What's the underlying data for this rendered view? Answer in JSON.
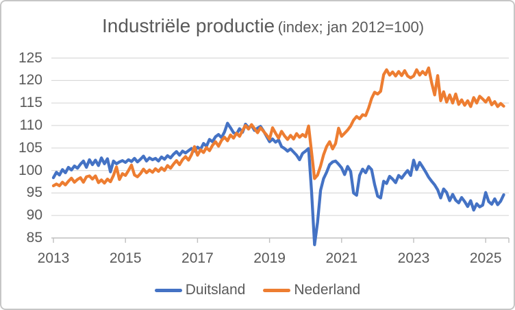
{
  "title": {
    "main": "Industriële productie",
    "sub": "(index; jan 2012=100)"
  },
  "colors": {
    "duitsland_blue": "#4472C4",
    "nederland_orange": "#ED7D31",
    "gridline": "#D9D9D9",
    "axis_line": "#BFBFBF",
    "text": "#595959",
    "frame_border": "#C6C6C6",
    "background": "#FFFFFF"
  },
  "chart_data": {
    "type": "line",
    "title": "Industriële productie (index; jan 2012=100)",
    "xlabel": "",
    "ylabel": "",
    "grid": true,
    "legend_position": "bottom",
    "ylim": [
      85,
      127
    ],
    "y_ticks": [
      85,
      90,
      95,
      100,
      105,
      110,
      115,
      120,
      125
    ],
    "x_tick_years": [
      2013,
      2015,
      2017,
      2019,
      2021,
      2023,
      2025
    ],
    "x_start": "2013-01",
    "x_frequency": "monthly",
    "x_end": "2025-07",
    "series": [
      {
        "name": "Duitsland",
        "color": "#4472C4",
        "values": [
          98.4,
          99.6,
          99.0,
          100.2,
          99.5,
          100.7,
          100.1,
          101.0,
          100.5,
          101.4,
          102.1,
          100.7,
          102.4,
          101.3,
          102.3,
          101.1,
          102.8,
          101.5,
          102.6,
          99.7,
          102.1,
          101.5,
          101.9,
          102.2,
          101.8,
          102.4,
          102.0,
          102.7,
          101.9,
          102.5,
          103.2,
          102.1,
          102.8,
          102.4,
          102.7,
          102.1,
          103.0,
          102.5,
          103.3,
          102.8,
          103.6,
          104.2,
          103.4,
          104.3,
          103.9,
          104.4,
          104.9,
          104.3,
          105.2,
          104.7,
          106.0,
          105.4,
          106.9,
          106.4,
          107.5,
          108.0,
          107.3,
          108.6,
          110.5,
          109.5,
          108.4,
          108.1,
          109.3,
          108.5,
          110.3,
          109.5,
          110.0,
          108.9,
          109.4,
          109.8,
          108.8,
          107.6,
          106.4,
          107.0,
          106.3,
          106.8,
          105.3,
          104.9,
          104.3,
          104.8,
          104.1,
          103.4,
          102.4,
          103.8,
          104.3,
          104.9,
          95.2,
          83.5,
          88.5,
          95.6,
          98.2,
          99.6,
          101.3,
          101.9,
          102.1,
          101.4,
          100.6,
          99.1,
          100.9,
          99.8,
          95.0,
          94.5,
          98.9,
          100.3,
          99.5,
          100.9,
          100.2,
          96.9,
          94.3,
          93.9,
          97.6,
          97.1,
          98.7,
          98.1,
          97.3,
          98.9,
          98.3,
          99.2,
          100.0,
          98.9,
          102.3,
          100.2,
          101.8,
          100.8,
          99.7,
          98.5,
          97.6,
          96.8,
          95.7,
          93.9,
          95.9,
          95.1,
          93.3,
          94.7,
          93.4,
          92.8,
          94.0,
          93.1,
          92.0,
          93.3,
          91.2,
          92.6,
          91.9,
          92.3,
          95.1,
          93.1,
          92.5,
          93.7,
          92.4,
          93.2,
          94.6
        ]
      },
      {
        "name": "Nederland",
        "color": "#ED7D31",
        "values": [
          96.6,
          97.0,
          96.6,
          97.4,
          96.8,
          97.6,
          98.3,
          97.4,
          98.0,
          98.4,
          97.4,
          98.6,
          98.8,
          98.1,
          98.8,
          97.3,
          97.9,
          97.2,
          98.1,
          97.5,
          98.9,
          100.8,
          98.0,
          99.3,
          98.9,
          100.0,
          101.2,
          99.0,
          98.6,
          99.3,
          100.3,
          99.5,
          100.1,
          99.6,
          100.4,
          99.8,
          100.6,
          100.0,
          101.1,
          100.5,
          101.4,
          102.2,
          101.3,
          102.4,
          103.1,
          102.3,
          103.5,
          105.3,
          103.4,
          104.6,
          104.0,
          105.1,
          104.4,
          105.6,
          106.4,
          105.4,
          106.7,
          107.4,
          106.6,
          107.9,
          107.2,
          108.3,
          107.6,
          108.9,
          110.0,
          109.2,
          110.2,
          109.3,
          108.4,
          109.5,
          108.7,
          107.9,
          107.0,
          109.5,
          108.3,
          107.2,
          108.7,
          107.7,
          106.9,
          107.8,
          107.0,
          108.2,
          107.4,
          108.0,
          107.5,
          109.9,
          104.0,
          98.2,
          99.0,
          101.0,
          103.5,
          105.3,
          106.4,
          104.8,
          106.0,
          109.4,
          107.6,
          108.3,
          109.0,
          109.9,
          111.2,
          112.0,
          111.5,
          112.4,
          112.2,
          113.9,
          116.0,
          117.4,
          117.0,
          117.6,
          121.3,
          122.4,
          121.2,
          121.9,
          121.0,
          122.0,
          121.1,
          122.2,
          121.0,
          120.6,
          121.0,
          122.4,
          121.2,
          122.0,
          121.3,
          122.8,
          119.5,
          116.8,
          121.1,
          115.5,
          117.5,
          115.2,
          116.8,
          115.0,
          117.0,
          114.7,
          115.7,
          114.5,
          115.5,
          114.2,
          116.2,
          115.0,
          116.5,
          115.9,
          115.2,
          116.2,
          114.6,
          115.3,
          114.2,
          114.9,
          114.3
        ]
      }
    ]
  }
}
